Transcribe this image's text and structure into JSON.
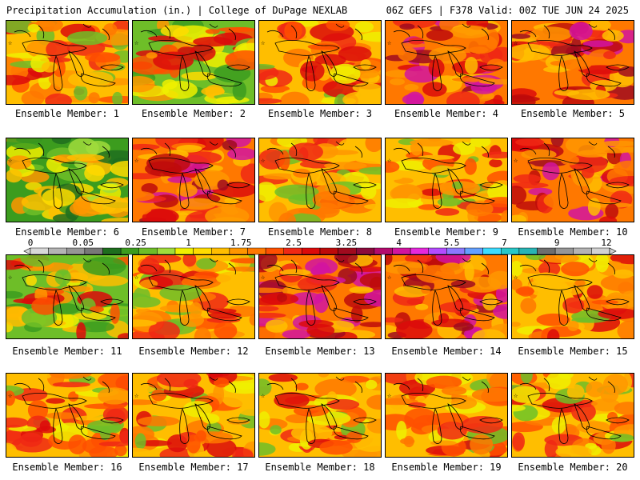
{
  "header": {
    "left_title": "Precipitation Accumulation (in.) | College of DuPage NEXLAB",
    "right_title": "06Z GEFS | F378 Valid: 00Z TUE JUN 24 2025"
  },
  "panels": [
    {
      "label": "Ensemble Member: 1",
      "tone": "warm"
    },
    {
      "label": "Ensemble Member: 2",
      "tone": "mixed"
    },
    {
      "label": "Ensemble Member: 3",
      "tone": "warm"
    },
    {
      "label": "Ensemble Member: 4",
      "tone": "hot"
    },
    {
      "label": "Ensemble Member: 5",
      "tone": "hot"
    },
    {
      "label": "Ensemble Member: 6",
      "tone": "cool"
    },
    {
      "label": "Ensemble Member: 7",
      "tone": "hot"
    },
    {
      "label": "Ensemble Member: 8",
      "tone": "warm"
    },
    {
      "label": "Ensemble Member: 9",
      "tone": "warm"
    },
    {
      "label": "Ensemble Member: 10",
      "tone": "hot"
    },
    {
      "label": "Ensemble Member: 11",
      "tone": "mixed"
    },
    {
      "label": "Ensemble Member: 12",
      "tone": "warm"
    },
    {
      "label": "Ensemble Member: 13",
      "tone": "hot"
    },
    {
      "label": "Ensemble Member: 14",
      "tone": "hot"
    },
    {
      "label": "Ensemble Member: 15",
      "tone": "warm"
    },
    {
      "label": "Ensemble Member: 16",
      "tone": "warm"
    },
    {
      "label": "Ensemble Member: 17",
      "tone": "warm"
    },
    {
      "label": "Ensemble Member: 18",
      "tone": "warm"
    },
    {
      "label": "Ensemble Member: 19",
      "tone": "warm"
    },
    {
      "label": "Ensemble Member: 20",
      "tone": "warm"
    }
  ],
  "colorbar": {
    "labels": [
      "0",
      "0.05",
      "0.25",
      "1",
      "1.75",
      "2.5",
      "3.25",
      "4",
      "5.5",
      "7",
      "9",
      "12"
    ],
    "colors": [
      "#d8d8d8",
      "#b4b4b4",
      "#969696",
      "#787878",
      "#1e6e1e",
      "#3c9c1e",
      "#6ebe28",
      "#a0dc3c",
      "#f0f000",
      "#ffdc00",
      "#ffbe00",
      "#ff9600",
      "#ff7800",
      "#ff5000",
      "#f02814",
      "#dc0a0a",
      "#be0a0a",
      "#a00a1e",
      "#8c0a3c",
      "#b40a6e",
      "#d214a0",
      "#e628dc",
      "#b44bff",
      "#8c78ff",
      "#64a0ff",
      "#3cdcff",
      "#28c8c8",
      "#28b4b4",
      "#6e6e6e",
      "#969696",
      "#b4b4b4",
      "#d2d2d2"
    ]
  }
}
